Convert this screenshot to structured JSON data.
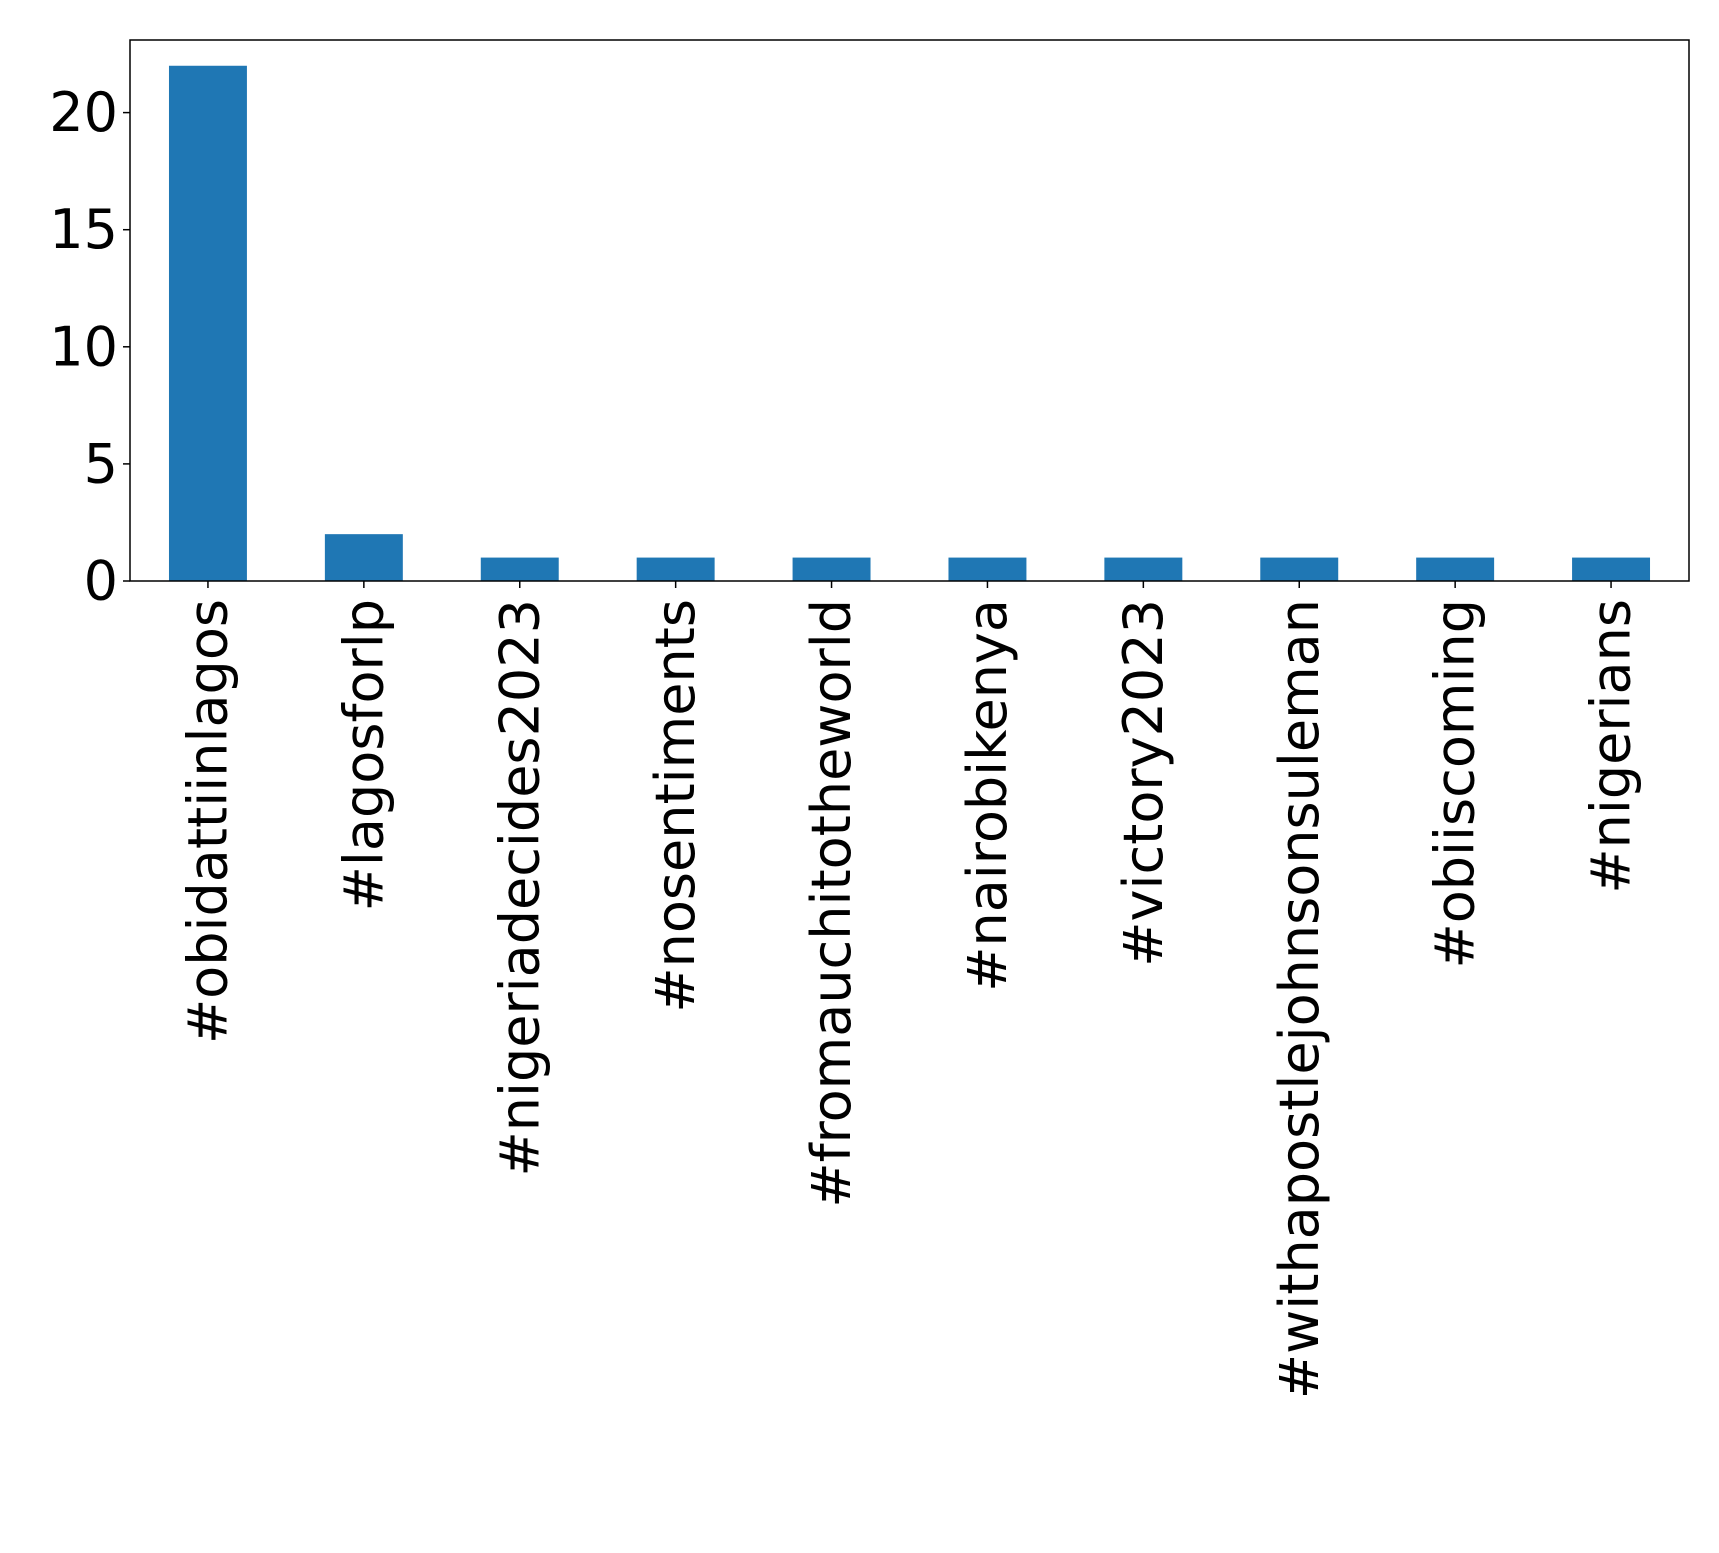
{
  "chart_data": {
    "type": "bar",
    "categories": [
      "#obidattiinlagos",
      "#lagosforlp",
      "#nigeriadecides2023",
      "#nosentiments",
      "#fromauchitotheworld",
      "#nairobikenya",
      "#victory2023",
      "#withapostlejohnsonsuleman",
      "#obiiscoming",
      "#nigerians"
    ],
    "values": [
      22,
      2,
      1,
      1,
      1,
      1,
      1,
      1,
      1,
      1
    ],
    "title": "",
    "xlabel": "",
    "ylabel": "",
    "ylim": [
      0,
      23.1
    ],
    "yticks": [
      0,
      5,
      10,
      15,
      20
    ],
    "grid": false,
    "bar_color": "#1f77b4"
  }
}
